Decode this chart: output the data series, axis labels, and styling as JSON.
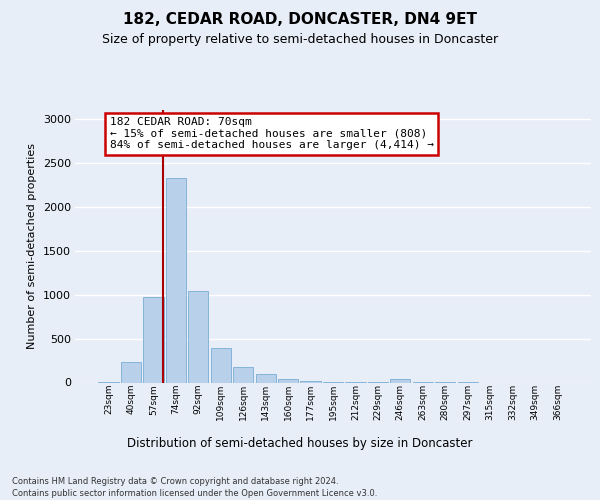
{
  "title": "182, CEDAR ROAD, DONCASTER, DN4 9ET",
  "subtitle": "Size of property relative to semi-detached houses in Doncaster",
  "xlabel": "Distribution of semi-detached houses by size in Doncaster",
  "ylabel": "Number of semi-detached properties",
  "categories": [
    "23sqm",
    "40sqm",
    "57sqm",
    "74sqm",
    "92sqm",
    "109sqm",
    "126sqm",
    "143sqm",
    "160sqm",
    "177sqm",
    "195sqm",
    "212sqm",
    "229sqm",
    "246sqm",
    "263sqm",
    "280sqm",
    "297sqm",
    "315sqm",
    "332sqm",
    "349sqm",
    "366sqm"
  ],
  "values": [
    10,
    230,
    970,
    2330,
    1040,
    390,
    175,
    95,
    45,
    20,
    10,
    5,
    2,
    35,
    5,
    2,
    1,
    0,
    0,
    0,
    0
  ],
  "bar_color": "#b8d0ea",
  "bar_edge_color": "#7aaed6",
  "vline_x": 2.43,
  "annotation_line1": "182 CEDAR ROAD: 70sqm",
  "annotation_line2": "← 15% of semi-detached houses are smaller (808)",
  "annotation_line3": "84% of semi-detached houses are larger (4,414) →",
  "ylim_max": 3100,
  "yticks": [
    0,
    500,
    1000,
    1500,
    2000,
    2500,
    3000
  ],
  "footer_line1": "Contains HM Land Registry data © Crown copyright and database right 2024.",
  "footer_line2": "Contains public sector information licensed under the Open Government Licence v3.0.",
  "bg_color": "#e8eef8",
  "grid_color": "#ffffff",
  "vline_color": "#aa0000",
  "ann_border_color": "#cc0000",
  "ann_bg_color": "#ffffff",
  "title_fontsize": 11,
  "subtitle_fontsize": 9
}
